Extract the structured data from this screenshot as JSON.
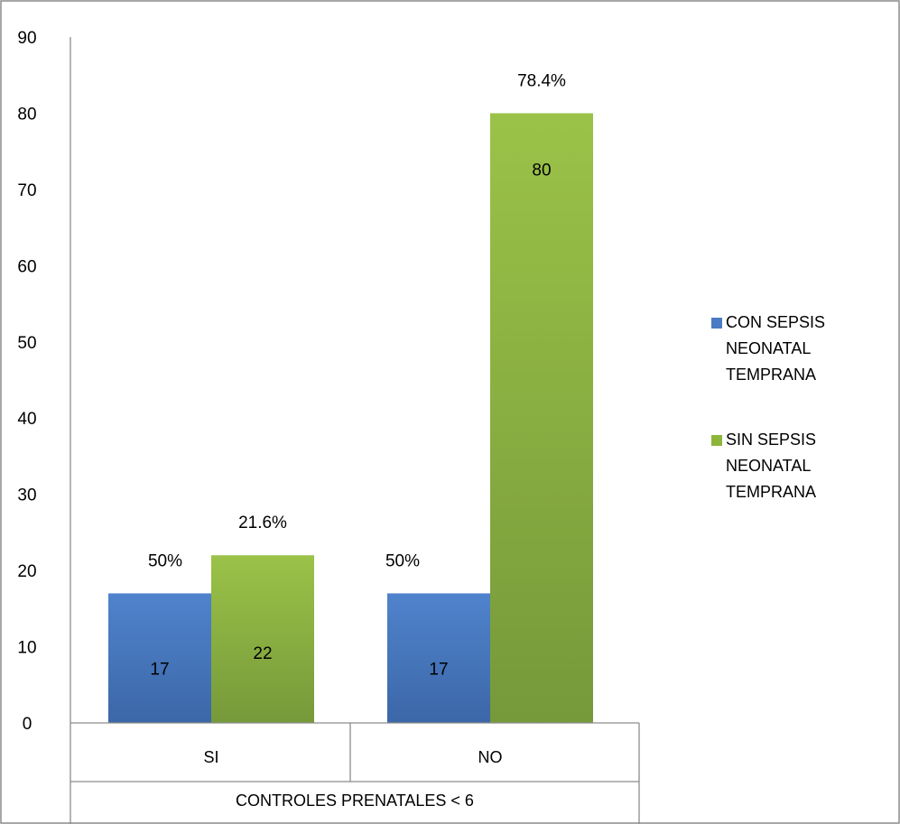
{
  "chart_data": {
    "type": "bar",
    "categories": [
      "SI",
      "NO"
    ],
    "group_label": "CONTROLES PRENATALES < 6",
    "series": [
      {
        "name": "CON SEPSIS NEONATAL TEMPRANA",
        "values": [
          17,
          17
        ],
        "value_labels": [
          "17",
          "17"
        ],
        "percent_labels": [
          "50%",
          "50%"
        ],
        "color": "#4a7bc4"
      },
      {
        "name": "SIN SEPSIS NEONATAL TEMPRANA",
        "values": [
          22,
          80
        ],
        "value_labels": [
          "22",
          "80"
        ],
        "percent_labels": [
          "21.6%",
          "78.4%"
        ],
        "color": "#8db63a"
      }
    ],
    "yticks": [
      "0",
      "10",
      "20",
      "30",
      "40",
      "50",
      "60",
      "70",
      "80",
      "90"
    ],
    "ylim": [
      0,
      90
    ],
    "grid": false,
    "legend_position": "right"
  }
}
